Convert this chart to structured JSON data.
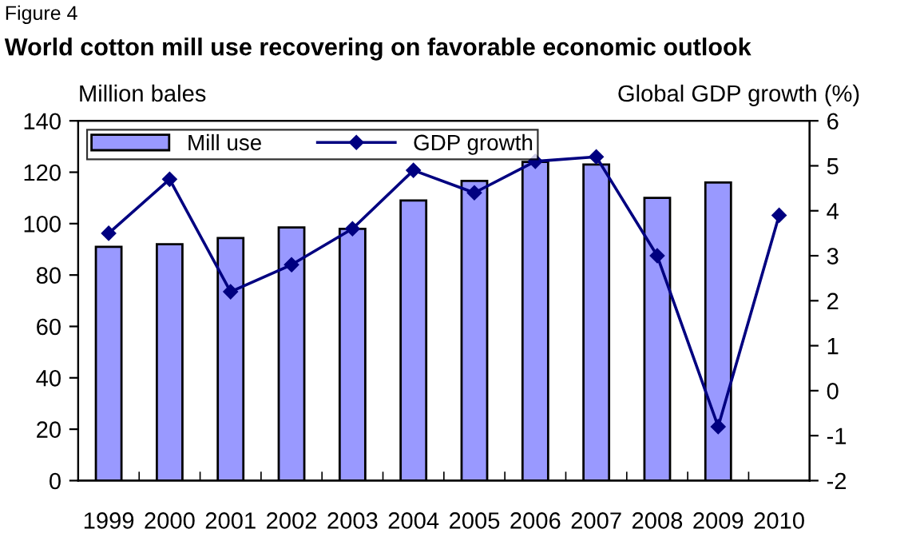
{
  "chart_data": {
    "type": "bar",
    "title": "World cotton mill use recovering on favorable economic outlook",
    "annotations": [
      "Figure 4"
    ],
    "ylabel": "Million bales",
    "y2label": "Global GDP growth (%)",
    "categories": [
      "1999",
      "2000",
      "2001",
      "2002",
      "2003",
      "2004",
      "2005",
      "2006",
      "2007",
      "2008",
      "2009",
      "2010"
    ],
    "series": [
      {
        "name": "Mill use",
        "color": "#9999ff",
        "values": [
          91,
          92,
          94.4,
          98.5,
          98,
          109,
          116.6,
          124,
          123,
          110,
          116,
          null
        ]
      },
      {
        "name": "GDP growth",
        "type": "line",
        "axis": "y2",
        "color": "#000080",
        "marker": "diamond",
        "values": [
          3.5,
          4.7,
          2.2,
          2.8,
          3.6,
          4.9,
          4.4,
          5.1,
          5.2,
          3.0,
          -0.8,
          3.9
        ]
      }
    ],
    "ylim": [
      0,
      140
    ],
    "yticks": [
      0,
      20,
      40,
      60,
      80,
      100,
      120,
      140
    ],
    "y2lim": [
      -2,
      6
    ],
    "y2ticks": [
      {
        "value": -2,
        "label": "-2"
      },
      {
        "value": -1,
        "label": "-1"
      },
      0,
      1,
      2,
      3,
      4,
      5,
      6
    ],
    "legend": "top left",
    "grid": false
  }
}
